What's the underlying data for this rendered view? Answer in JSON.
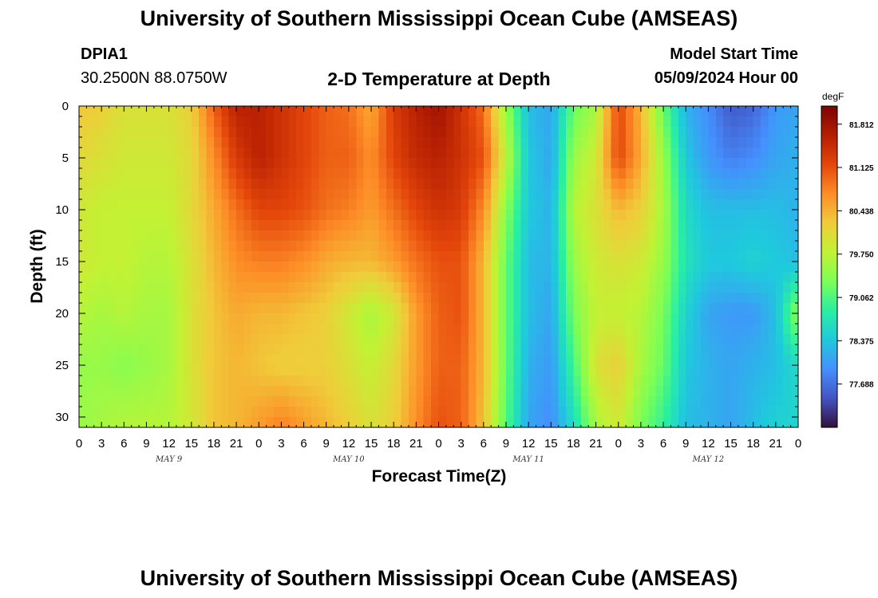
{
  "page": {
    "title": "University of Southern Mississippi Ocean Cube (AMSEAS)",
    "footer_title": "University of Southern Mississippi Ocean Cube (AMSEAS)",
    "station_id": "DPIA1",
    "station_coords": "30.2500N  88.0750W",
    "model_start_label": "Model Start Time",
    "model_start_value": "05/09/2024 Hour 00"
  },
  "chart_data": {
    "type": "heatmap",
    "title": "2-D Temperature at Depth",
    "xlabel": "Forecast Time(Z)",
    "ylabel": "Depth (ft)",
    "x_tick_labels": [
      "0",
      "3",
      "6",
      "9",
      "12",
      "15",
      "18",
      "21",
      "0",
      "3",
      "6",
      "9",
      "12",
      "15",
      "18",
      "21",
      "0",
      "3",
      "6",
      "9",
      "12",
      "15",
      "18",
      "21",
      "0",
      "3",
      "6",
      "9",
      "12",
      "15",
      "18",
      "21",
      "0"
    ],
    "x_day_labels": [
      "MAY 9",
      "MAY 10",
      "MAY 11",
      "MAY 12"
    ],
    "x_range_hours": [
      0,
      96
    ],
    "y_ticks": [
      0,
      5,
      10,
      15,
      20,
      25,
      30
    ],
    "y_range_ft": [
      0,
      31
    ],
    "colorbar": {
      "unit": "degF",
      "range": [
        77.0,
        82.1
      ],
      "tick_values": [
        81.812,
        81.125,
        80.438,
        79.75,
        79.062,
        78.375,
        77.688
      ],
      "tick_labels": [
        "81.812",
        "81.125",
        "80.438",
        "79.750",
        "79.062",
        "78.375",
        "77.688"
      ],
      "colormap": [
        "#30123b",
        "#4454c4",
        "#4490fe",
        "#1fc9dd",
        "#29efa2",
        "#7cff55",
        "#c2f234",
        "#f0cc3a",
        "#fd8d27",
        "#e4460a",
        "#b51e02",
        "#7a0403"
      ]
    },
    "depth_samples_ft": [
      0,
      5,
      10,
      15,
      20,
      25,
      31
    ],
    "time_samples_hours": [
      0,
      3,
      6,
      9,
      12,
      15,
      18,
      21,
      24,
      27,
      30,
      33,
      36,
      39,
      42,
      45,
      48,
      51,
      54,
      57,
      60,
      63,
      66,
      69,
      72,
      75,
      78,
      81,
      84,
      87,
      90,
      93,
      96
    ],
    "temperature_degF_by_depth": [
      [
        80.3,
        80.2,
        80.0,
        80.0,
        80.0,
        80.2,
        81.0,
        81.6,
        81.6,
        81.4,
        81.2,
        81.0,
        80.9,
        80.5,
        81.3,
        81.6,
        81.8,
        81.4,
        80.9,
        79.5,
        78.3,
        78.1,
        79.2,
        79.6,
        81.2,
        80.4,
        79.2,
        78.2,
        77.9,
        77.5,
        77.6,
        78.0,
        78.1
      ],
      [
        80.1,
        80.0,
        79.9,
        79.9,
        79.9,
        80.1,
        80.7,
        81.3,
        81.6,
        81.4,
        81.2,
        81.0,
        81.0,
        80.7,
        81.2,
        81.5,
        81.6,
        81.4,
        81.1,
        79.8,
        78.4,
        78.1,
        79.5,
        79.9,
        81.2,
        80.5,
        79.5,
        78.4,
        78.0,
        77.8,
        77.9,
        78.1,
        78.2
      ],
      [
        79.9,
        79.8,
        79.8,
        79.8,
        79.8,
        80.1,
        80.5,
        80.9,
        81.2,
        81.2,
        81.1,
        80.9,
        80.8,
        80.6,
        80.9,
        81.2,
        81.4,
        81.3,
        80.7,
        79.4,
        78.4,
        78.2,
        79.7,
        80.0,
        80.4,
        80.2,
        79.6,
        78.6,
        78.3,
        78.3,
        78.3,
        78.3,
        78.2
      ],
      [
        79.9,
        79.8,
        79.8,
        79.7,
        79.7,
        80.0,
        80.4,
        80.7,
        80.8,
        80.8,
        80.7,
        80.5,
        80.4,
        80.4,
        80.6,
        80.9,
        81.1,
        81.1,
        80.4,
        79.2,
        78.3,
        78.2,
        79.5,
        79.9,
        80.0,
        79.9,
        79.5,
        78.7,
        78.4,
        78.4,
        78.5,
        78.4,
        78.3
      ],
      [
        79.7,
        79.6,
        79.7,
        79.6,
        79.6,
        80.0,
        80.3,
        80.5,
        80.4,
        80.4,
        80.3,
        80.2,
        79.9,
        79.6,
        79.9,
        80.6,
        81.0,
        81.1,
        80.4,
        79.2,
        78.3,
        78.1,
        79.3,
        79.8,
        79.8,
        79.7,
        79.3,
        78.5,
        78.1,
        78.0,
        78.0,
        78.3,
        79.5
      ],
      [
        79.5,
        79.5,
        79.4,
        79.5,
        79.6,
        80.0,
        80.3,
        80.4,
        80.3,
        80.2,
        80.2,
        80.2,
        80.0,
        79.8,
        80.1,
        80.6,
        81.0,
        81.0,
        80.4,
        79.2,
        78.2,
        78.0,
        79.0,
        80.0,
        80.2,
        79.6,
        79.2,
        78.4,
        78.2,
        78.1,
        78.2,
        78.3,
        78.6
      ],
      [
        79.5,
        79.6,
        79.7,
        79.7,
        79.7,
        79.9,
        80.3,
        80.4,
        80.6,
        80.8,
        80.6,
        80.4,
        80.2,
        80.0,
        80.2,
        80.7,
        81.1,
        81.0,
        80.3,
        79.1,
        78.1,
        77.9,
        78.6,
        79.6,
        79.9,
        79.3,
        78.9,
        78.3,
        78.2,
        78.1,
        78.3,
        78.5,
        78.5
      ]
    ]
  }
}
